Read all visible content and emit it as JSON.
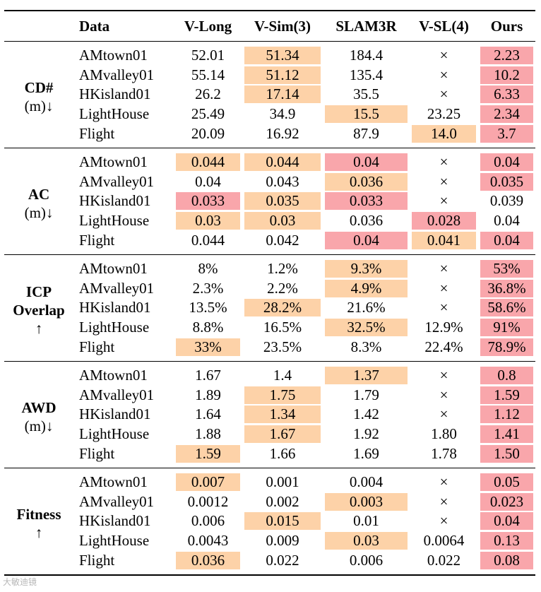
{
  "colors": {
    "best": "#f9a6ab",
    "second": "#fdd2a8"
  },
  "headers": [
    "",
    "Data",
    "V-Long",
    "V-Sim(3)",
    "SLAM3R",
    "V-SL(4)",
    "Ours"
  ],
  "groups": [
    {
      "metric": "CD#",
      "unit": "(m)↓",
      "rows": [
        {
          "data": "AMtown01",
          "cells": [
            [
              "52.01",
              ""
            ],
            [
              "51.34",
              "s"
            ],
            [
              "184.4",
              ""
            ],
            [
              "×",
              ""
            ],
            [
              "2.23",
              "b"
            ]
          ]
        },
        {
          "data": "AMvalley01",
          "cells": [
            [
              "55.14",
              ""
            ],
            [
              "51.12",
              "s"
            ],
            [
              "135.4",
              ""
            ],
            [
              "×",
              ""
            ],
            [
              "10.2",
              "b"
            ]
          ]
        },
        {
          "data": "HKisland01",
          "cells": [
            [
              "26.2",
              ""
            ],
            [
              "17.14",
              "s"
            ],
            [
              "35.5",
              ""
            ],
            [
              "×",
              ""
            ],
            [
              "6.33",
              "b"
            ]
          ]
        },
        {
          "data": "LightHouse",
          "cells": [
            [
              "25.49",
              ""
            ],
            [
              "34.9",
              ""
            ],
            [
              "15.5",
              "s"
            ],
            [
              "23.25",
              ""
            ],
            [
              "2.34",
              "b"
            ]
          ]
        },
        {
          "data": "Flight",
          "cells": [
            [
              "20.09",
              ""
            ],
            [
              "16.92",
              ""
            ],
            [
              "87.9",
              ""
            ],
            [
              "14.0",
              "s"
            ],
            [
              "3.7",
              "b"
            ]
          ]
        }
      ]
    },
    {
      "metric": "AC",
      "unit": "(m)↓",
      "rows": [
        {
          "data": "AMtown01",
          "cells": [
            [
              "0.044",
              "s"
            ],
            [
              "0.044",
              "s"
            ],
            [
              "0.04",
              "b"
            ],
            [
              "×",
              ""
            ],
            [
              "0.04",
              "b"
            ]
          ]
        },
        {
          "data": "AMvalley01",
          "cells": [
            [
              "0.04",
              ""
            ],
            [
              "0.043",
              ""
            ],
            [
              "0.036",
              "s"
            ],
            [
              "×",
              ""
            ],
            [
              "0.035",
              "b"
            ]
          ]
        },
        {
          "data": "HKisland01",
          "cells": [
            [
              "0.033",
              "b"
            ],
            [
              "0.035",
              "s"
            ],
            [
              "0.033",
              "b"
            ],
            [
              "×",
              ""
            ],
            [
              "0.039",
              ""
            ]
          ]
        },
        {
          "data": "LightHouse",
          "cells": [
            [
              "0.03",
              "s"
            ],
            [
              "0.03",
              "s"
            ],
            [
              "0.036",
              ""
            ],
            [
              "0.028",
              "b"
            ],
            [
              "0.04",
              ""
            ]
          ]
        },
        {
          "data": "Flight",
          "cells": [
            [
              "0.044",
              ""
            ],
            [
              "0.042",
              ""
            ],
            [
              "0.04",
              "b"
            ],
            [
              "0.041",
              "s"
            ],
            [
              "0.04",
              "b"
            ]
          ]
        }
      ]
    },
    {
      "metric": "ICP Overlap",
      "unit": "↑",
      "rows": [
        {
          "data": "AMtown01",
          "cells": [
            [
              "8%",
              ""
            ],
            [
              "1.2%",
              ""
            ],
            [
              "9.3%",
              "s"
            ],
            [
              "×",
              ""
            ],
            [
              "53%",
              "b"
            ]
          ]
        },
        {
          "data": "AMvalley01",
          "cells": [
            [
              "2.3%",
              ""
            ],
            [
              "2.2%",
              ""
            ],
            [
              "4.9%",
              "s"
            ],
            [
              "×",
              ""
            ],
            [
              "36.8%",
              "b"
            ]
          ]
        },
        {
          "data": "HKisland01",
          "cells": [
            [
              "13.5%",
              ""
            ],
            [
              "28.2%",
              "s"
            ],
            [
              "21.6%",
              ""
            ],
            [
              "×",
              ""
            ],
            [
              "58.6%",
              "b"
            ]
          ]
        },
        {
          "data": "LightHouse",
          "cells": [
            [
              "8.8%",
              ""
            ],
            [
              "16.5%",
              ""
            ],
            [
              "32.5%",
              "s"
            ],
            [
              "12.9%",
              ""
            ],
            [
              "91%",
              "b"
            ]
          ]
        },
        {
          "data": "Flight",
          "cells": [
            [
              "33%",
              "s"
            ],
            [
              "23.5%",
              ""
            ],
            [
              "8.3%",
              ""
            ],
            [
              "22.4%",
              ""
            ],
            [
              "78.9%",
              "b"
            ]
          ]
        }
      ]
    },
    {
      "metric": "AWD",
      "unit": "(m)↓",
      "rows": [
        {
          "data": "AMtown01",
          "cells": [
            [
              "1.67",
              ""
            ],
            [
              "1.4",
              ""
            ],
            [
              "1.37",
              "s"
            ],
            [
              "×",
              ""
            ],
            [
              "0.8",
              "b"
            ]
          ]
        },
        {
          "data": "AMvalley01",
          "cells": [
            [
              "1.89",
              ""
            ],
            [
              "1.75",
              "s"
            ],
            [
              "1.79",
              ""
            ],
            [
              "×",
              ""
            ],
            [
              "1.59",
              "b"
            ]
          ]
        },
        {
          "data": "HKisland01",
          "cells": [
            [
              "1.64",
              ""
            ],
            [
              "1.34",
              "s"
            ],
            [
              "1.42",
              ""
            ],
            [
              "×",
              ""
            ],
            [
              "1.12",
              "b"
            ]
          ]
        },
        {
          "data": "LightHouse",
          "cells": [
            [
              "1.88",
              ""
            ],
            [
              "1.67",
              "s"
            ],
            [
              "1.92",
              ""
            ],
            [
              "1.80",
              ""
            ],
            [
              "1.41",
              "b"
            ]
          ]
        },
        {
          "data": "Flight",
          "cells": [
            [
              "1.59",
              "s"
            ],
            [
              "1.66",
              ""
            ],
            [
              "1.69",
              ""
            ],
            [
              "1.78",
              ""
            ],
            [
              "1.50",
              "b"
            ]
          ]
        }
      ]
    },
    {
      "metric": "Fitness",
      "unit": "↑",
      "rows": [
        {
          "data": "AMtown01",
          "cells": [
            [
              "0.007",
              "s"
            ],
            [
              "0.001",
              ""
            ],
            [
              "0.004",
              ""
            ],
            [
              "×",
              ""
            ],
            [
              "0.05",
              "b"
            ]
          ]
        },
        {
          "data": "AMvalley01",
          "cells": [
            [
              "0.0012",
              ""
            ],
            [
              "0.002",
              ""
            ],
            [
              "0.003",
              "s"
            ],
            [
              "×",
              ""
            ],
            [
              "0.023",
              "b"
            ]
          ]
        },
        {
          "data": "HKisland01",
          "cells": [
            [
              "0.006",
              ""
            ],
            [
              "0.015",
              "s"
            ],
            [
              "0.01",
              ""
            ],
            [
              "×",
              ""
            ],
            [
              "0.04",
              "b"
            ]
          ]
        },
        {
          "data": "LightHouse",
          "cells": [
            [
              "0.0043",
              ""
            ],
            [
              "0.009",
              ""
            ],
            [
              "0.03",
              "s"
            ],
            [
              "0.0064",
              ""
            ],
            [
              "0.13",
              "b"
            ]
          ]
        },
        {
          "data": "Flight",
          "cells": [
            [
              "0.036",
              "s"
            ],
            [
              "0.022",
              ""
            ],
            [
              "0.006",
              ""
            ],
            [
              "0.022",
              ""
            ],
            [
              "0.08",
              "b"
            ]
          ]
        }
      ]
    }
  ],
  "watermark": "大敏迪镜"
}
